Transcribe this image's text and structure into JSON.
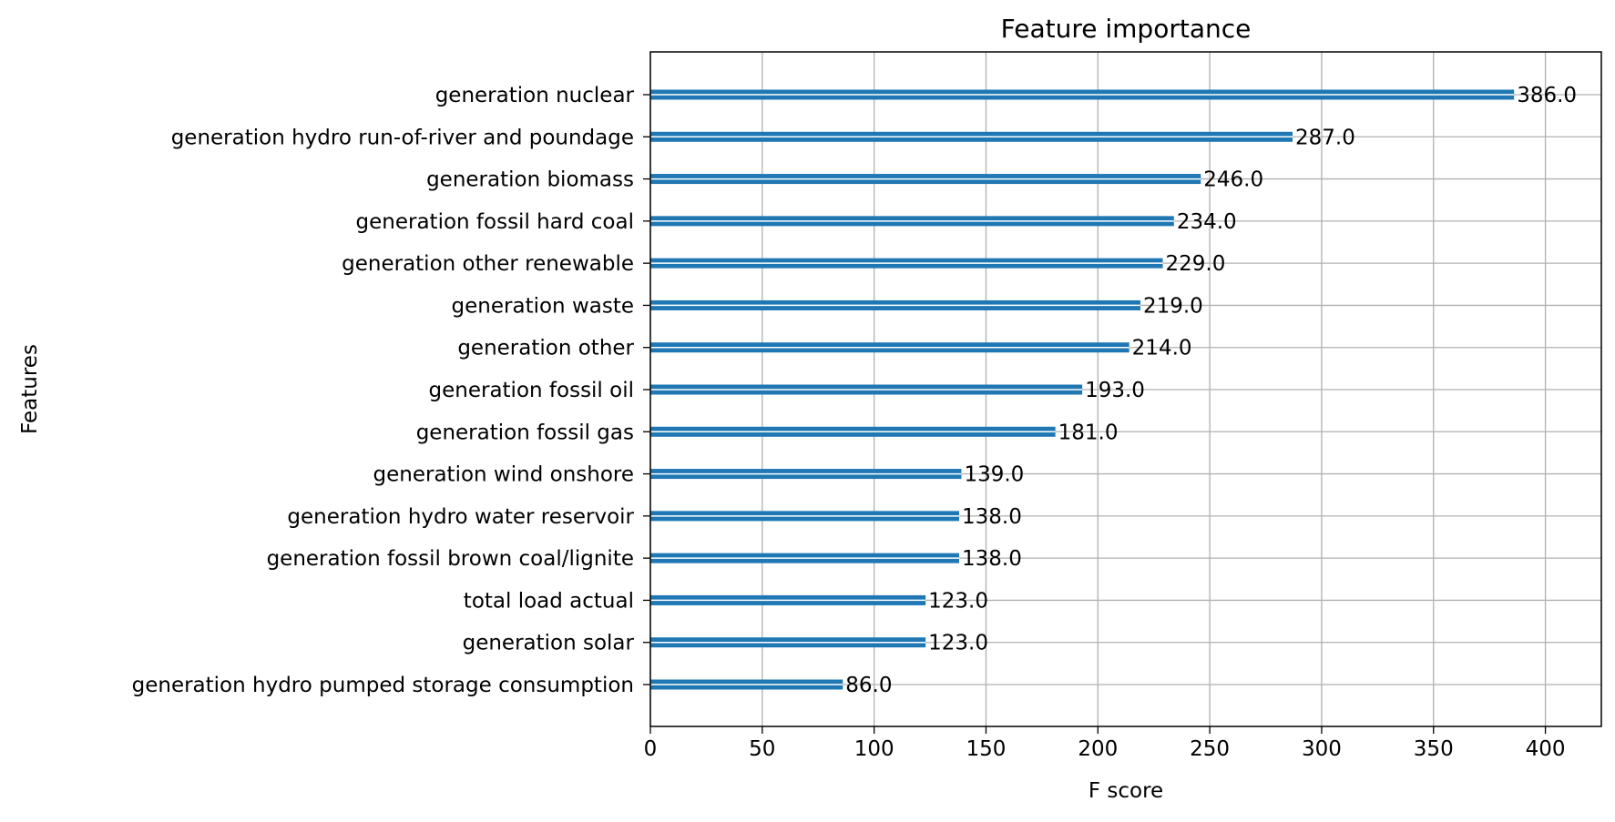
{
  "chart_data": {
    "type": "bar",
    "orientation": "horizontal",
    "title": "Feature importance",
    "xlabel": "F score",
    "ylabel": "Features",
    "xlim": [
      0,
      425
    ],
    "xticks": [
      0,
      50,
      100,
      150,
      200,
      250,
      300,
      350,
      400
    ],
    "grid": true,
    "bar_color": "#1f77b4",
    "categories": [
      "generation nuclear",
      "generation hydro run-of-river and poundage",
      "generation biomass",
      "generation fossil hard coal",
      "generation other renewable",
      "generation waste",
      "generation other",
      "generation fossil oil",
      "generation fossil gas",
      "generation wind onshore",
      "generation hydro water reservoir",
      "generation fossil brown coal/lignite",
      "total load actual",
      "generation solar",
      "generation hydro pumped storage consumption"
    ],
    "values": [
      386,
      287,
      246,
      234,
      229,
      219,
      214,
      193,
      181,
      139,
      138,
      138,
      123,
      123,
      86
    ],
    "value_labels": [
      "386.0",
      "287.0",
      "246.0",
      "234.0",
      "229.0",
      "219.0",
      "214.0",
      "193.0",
      "181.0",
      "139.0",
      "138.0",
      "138.0",
      "123.0",
      "123.0",
      "86.0"
    ]
  }
}
